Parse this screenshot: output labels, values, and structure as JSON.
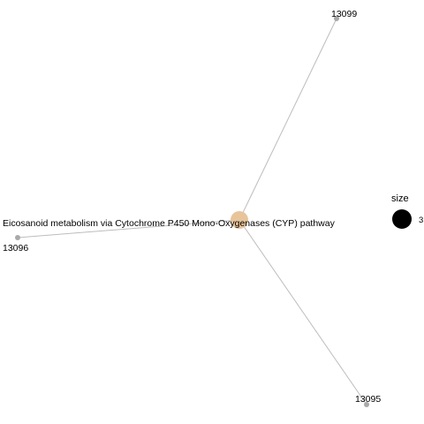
{
  "network": {
    "center": {
      "id": "pathway",
      "label": "Eicosanoid metabolism via Cytochrome P450 Mono-Oxygenases (CYP) pathway",
      "color": "#E8C49A"
    },
    "genes": [
      {
        "id": "13099",
        "label": "13099"
      },
      {
        "id": "13096",
        "label": "13096"
      },
      {
        "id": "13095",
        "label": "13095"
      }
    ],
    "edges": [
      {
        "source": "pathway",
        "target": "13099"
      },
      {
        "source": "pathway",
        "target": "13096"
      },
      {
        "source": "pathway",
        "target": "13095"
      }
    ],
    "gene_color": "#A9A9A9",
    "edge_color": "#BDBDBD"
  },
  "legend": {
    "title": "size",
    "value": "3",
    "color": "#000000"
  }
}
